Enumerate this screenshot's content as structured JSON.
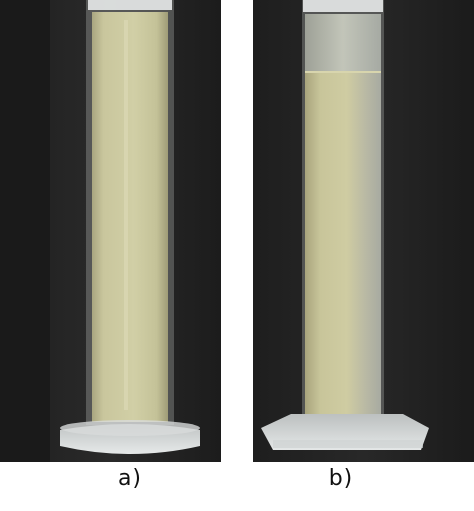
{
  "panels": [
    {
      "caption": "a)"
    },
    {
      "caption": "b)"
    }
  ],
  "colors": {
    "background": "#242424",
    "suspension": "#c9c79e",
    "clear_layer": "#b9bcaf",
    "glass": "#dfe2e2"
  }
}
